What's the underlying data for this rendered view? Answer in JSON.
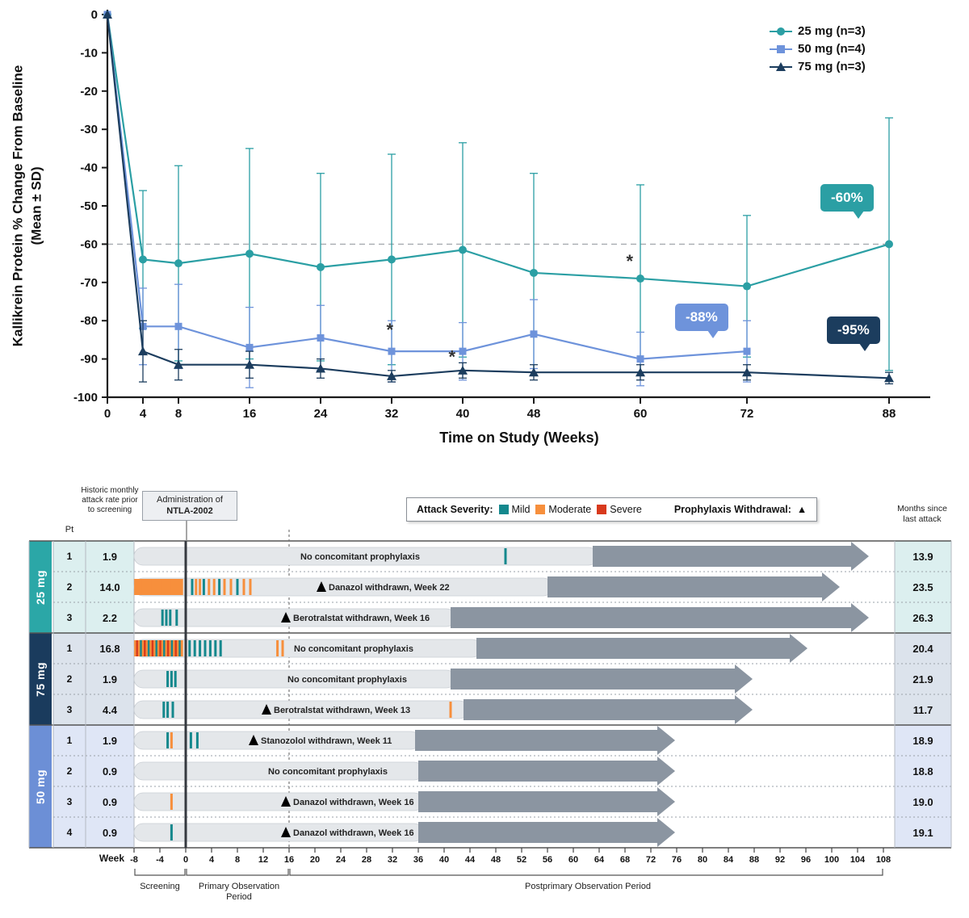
{
  "chart_data": [
    {
      "type": "line",
      "title": "",
      "xlabel": "Time on Study (Weeks)",
      "ylabel": "Kallikrein Protein % Change From Baseline (Mean ± SD)",
      "ylabel_line1": "Kallikrein Protein % Change From Baseline",
      "ylabel_line2": "(Mean ± SD)",
      "xlim": [
        0,
        88
      ],
      "ylim": [
        -100,
        0
      ],
      "x_ticks": [
        0,
        4,
        8,
        16,
        24,
        32,
        40,
        48,
        60,
        72,
        88
      ],
      "y_ticks": [
        0,
        -10,
        -20,
        -30,
        -40,
        -50,
        -60,
        -70,
        -80,
        -90,
        -100
      ],
      "reference_line": -60,
      "legend_position": "top-right",
      "series": [
        {
          "name": "25 mg (n=3)",
          "marker": "circle",
          "color": "#2B9FA4",
          "x": [
            0,
            4,
            8,
            16,
            24,
            32,
            40,
            48,
            60,
            72,
            88
          ],
          "y": [
            0,
            -64,
            -65,
            -62.5,
            -66,
            -64,
            -61.5,
            -67.5,
            -69,
            -71,
            -60
          ],
          "sd": [
            0,
            18,
            25.5,
            27.5,
            24.5,
            27.5,
            28,
            26,
            24.5,
            18.5,
            33
          ]
        },
        {
          "name": "50 mg (n=4)",
          "marker": "square",
          "color": "#6E93DB",
          "x": [
            0,
            4,
            8,
            16,
            24,
            32,
            40,
            48,
            60,
            72
          ],
          "y": [
            0,
            -81.5,
            -81.5,
            -87,
            -84.5,
            -88,
            -88,
            -83.5,
            -90,
            -88
          ],
          "sd": [
            0,
            10,
            11,
            10.5,
            8.5,
            8,
            7.5,
            9,
            7,
            8
          ]
        },
        {
          "name": "75 mg (n=3)",
          "marker": "triangle",
          "color": "#1C3D5E",
          "x": [
            0,
            4,
            8,
            16,
            24,
            32,
            40,
            48,
            60,
            72,
            88
          ],
          "y": [
            0,
            -88,
            -91.5,
            -91.5,
            -92.5,
            -94.5,
            -93,
            -93.5,
            -93.5,
            -93.5,
            -95
          ],
          "sd": [
            0,
            8,
            4,
            3.5,
            2.5,
            1.5,
            2,
            2,
            2,
            2,
            1.5
          ]
        }
      ],
      "callouts": [
        {
          "text": "-60%",
          "color": "#2B9FA4",
          "x": 88,
          "y": -60
        },
        {
          "text": "-88%",
          "color": "#6E93DB",
          "x": 72,
          "y": -88
        },
        {
          "text": "-95%",
          "color": "#1C3D5E",
          "x": 88,
          "y": -95
        }
      ],
      "asterisks": [
        {
          "x": 31.8,
          "y": -84.0
        },
        {
          "x": 38.8,
          "y": -91.0
        },
        {
          "x": 58.8,
          "y": -66.0
        }
      ]
    },
    {
      "type": "swimmer",
      "headers": {
        "pt": "Pt",
        "historic_rate": "Historic monthly attack rate prior to screening",
        "admin_line1": "Administration of",
        "admin_line2": "NTLA-2002",
        "months_since": "Months since last attack",
        "week_axis": "Week"
      },
      "legend": {
        "attack_severity_label": "Attack Severity:",
        "severities": [
          {
            "key": "mild",
            "label": "Mild",
            "color": "#14888D"
          },
          {
            "key": "moderate",
            "label": "Moderate",
            "color": "#F78F3C"
          },
          {
            "key": "severe",
            "label": "Severe",
            "color": "#D8391C"
          }
        ],
        "withdrawal_label": "Prophylaxis Withdrawal:",
        "withdrawal_symbol": "▲"
      },
      "week_ticks": [
        -8,
        -4,
        0,
        4,
        8,
        12,
        16,
        20,
        24,
        28,
        32,
        36,
        40,
        44,
        48,
        52,
        56,
        60,
        64,
        68,
        72,
        76,
        80,
        84,
        88,
        92,
        96,
        100,
        104,
        108
      ],
      "periods": [
        {
          "label": "Screening",
          "from": -8,
          "to": 0
        },
        {
          "label": "Primary Observation Period",
          "from": 0,
          "to": 16
        },
        {
          "label": "Postprimary Observation Period",
          "from": 16,
          "to": 108
        }
      ],
      "bar_color": "#E4E7EA",
      "arrow_color": "#8B95A1",
      "groups": [
        {
          "label": "25 mg",
          "color": "#2BA7A7",
          "tint": "#DCEFEF",
          "patients": [
            {
              "pt": "1",
              "rate": "1.9",
              "months_since_last_attack": "13.9",
              "annotation": "No concomitant prophylaxis",
              "annotation_center_week": 27,
              "withdrawal_week": null,
              "arrow_start": 63,
              "arrow_end": 105.5,
              "attacks": [
                {
                  "w": 49.5,
                  "s": "mild"
                }
              ]
            },
            {
              "pt": "2",
              "rate": "14.0",
              "months_since_last_attack": "23.5",
              "annotation": "Danazol withdrawn, Week 22",
              "annotation_center_week": null,
              "withdrawal_week": 21,
              "arrow_start": 56,
              "arrow_end": 101,
              "attacks": [
                {
                  "w": -7.8,
                  "s": "moderate"
                },
                {
                  "w": -7.5,
                  "s": "moderate"
                },
                {
                  "w": -7.2,
                  "s": "moderate"
                },
                {
                  "w": -6.9,
                  "s": "moderate"
                },
                {
                  "w": -6.6,
                  "s": "moderate"
                },
                {
                  "w": -6.3,
                  "s": "moderate"
                },
                {
                  "w": -6.0,
                  "s": "moderate"
                },
                {
                  "w": -5.7,
                  "s": "moderate"
                },
                {
                  "w": -5.4,
                  "s": "moderate"
                },
                {
                  "w": -5.1,
                  "s": "moderate"
                },
                {
                  "w": -4.8,
                  "s": "moderate"
                },
                {
                  "w": -4.5,
                  "s": "moderate"
                },
                {
                  "w": -4.2,
                  "s": "moderate"
                },
                {
                  "w": -3.9,
                  "s": "moderate"
                },
                {
                  "w": -3.6,
                  "s": "moderate"
                },
                {
                  "w": -3.3,
                  "s": "moderate"
                },
                {
                  "w": -3.0,
                  "s": "moderate"
                },
                {
                  "w": -2.7,
                  "s": "moderate"
                },
                {
                  "w": -2.4,
                  "s": "moderate"
                },
                {
                  "w": -2.1,
                  "s": "moderate"
                },
                {
                  "w": -1.8,
                  "s": "moderate"
                },
                {
                  "w": -1.5,
                  "s": "moderate"
                },
                {
                  "w": -1.2,
                  "s": "moderate"
                },
                {
                  "w": -0.9,
                  "s": "moderate"
                },
                {
                  "w": -0.6,
                  "s": "moderate"
                },
                {
                  "w": 1.0,
                  "s": "mild"
                },
                {
                  "w": 1.6,
                  "s": "moderate"
                },
                {
                  "w": 2.2,
                  "s": "moderate"
                },
                {
                  "w": 2.8,
                  "s": "mild"
                },
                {
                  "w": 3.6,
                  "s": "moderate"
                },
                {
                  "w": 4.4,
                  "s": "moderate"
                },
                {
                  "w": 5.2,
                  "s": "mild"
                },
                {
                  "w": 6.0,
                  "s": "moderate"
                },
                {
                  "w": 7.0,
                  "s": "moderate"
                },
                {
                  "w": 8.0,
                  "s": "mild"
                },
                {
                  "w": 9.0,
                  "s": "moderate"
                },
                {
                  "w": 10.0,
                  "s": "moderate"
                }
              ]
            },
            {
              "pt": "3",
              "rate": "2.2",
              "months_since_last_attack": "26.3",
              "annotation": "Berotralstat withdrawn, Week 16",
              "annotation_center_week": null,
              "withdrawal_week": 15.5,
              "arrow_start": 41,
              "arrow_end": 105.5,
              "attacks": [
                {
                  "w": -3.6,
                  "s": "mild"
                },
                {
                  "w": -3.0,
                  "s": "mild"
                },
                {
                  "w": -2.4,
                  "s": "mild"
                },
                {
                  "w": -1.4,
                  "s": "mild"
                }
              ]
            }
          ]
        },
        {
          "label": "75 mg",
          "color": "#1A3B5D",
          "tint": "#DCE3EC",
          "patients": [
            {
              "pt": "1",
              "rate": "16.8",
              "months_since_last_attack": "20.4",
              "annotation": "No concomitant prophylaxis",
              "annotation_center_week": 26,
              "withdrawal_week": null,
              "arrow_start": 45,
              "arrow_end": 96,
              "attacks": [
                {
                  "w": -7.8,
                  "s": "moderate"
                },
                {
                  "w": -7.5,
                  "s": "severe"
                },
                {
                  "w": -7.2,
                  "s": "moderate"
                },
                {
                  "w": -6.9,
                  "s": "mild"
                },
                {
                  "w": -6.6,
                  "s": "moderate"
                },
                {
                  "w": -6.3,
                  "s": "severe"
                },
                {
                  "w": -6.0,
                  "s": "moderate"
                },
                {
                  "w": -5.7,
                  "s": "mild"
                },
                {
                  "w": -5.4,
                  "s": "moderate"
                },
                {
                  "w": -5.1,
                  "s": "severe"
                },
                {
                  "w": -4.8,
                  "s": "moderate"
                },
                {
                  "w": -4.5,
                  "s": "mild"
                },
                {
                  "w": -4.2,
                  "s": "moderate"
                },
                {
                  "w": -3.9,
                  "s": "severe"
                },
                {
                  "w": -3.6,
                  "s": "moderate"
                },
                {
                  "w": -3.3,
                  "s": "mild"
                },
                {
                  "w": -3.0,
                  "s": "moderate"
                },
                {
                  "w": -2.7,
                  "s": "severe"
                },
                {
                  "w": -2.4,
                  "s": "moderate"
                },
                {
                  "w": -2.1,
                  "s": "mild"
                },
                {
                  "w": -1.8,
                  "s": "moderate"
                },
                {
                  "w": -1.5,
                  "s": "severe"
                },
                {
                  "w": -1.2,
                  "s": "moderate"
                },
                {
                  "w": -0.9,
                  "s": "mild"
                },
                {
                  "w": -0.6,
                  "s": "moderate"
                },
                {
                  "w": 0.6,
                  "s": "mild"
                },
                {
                  "w": 1.4,
                  "s": "mild"
                },
                {
                  "w": 2.2,
                  "s": "mild"
                },
                {
                  "w": 3.0,
                  "s": "mild"
                },
                {
                  "w": 3.8,
                  "s": "mild"
                },
                {
                  "w": 4.6,
                  "s": "mild"
                },
                {
                  "w": 5.4,
                  "s": "mild"
                },
                {
                  "w": 14.2,
                  "s": "moderate"
                },
                {
                  "w": 15.0,
                  "s": "moderate"
                }
              ]
            },
            {
              "pt": "2",
              "rate": "1.9",
              "months_since_last_attack": "21.9",
              "annotation": "No concomitant prophylaxis",
              "annotation_center_week": 25,
              "withdrawal_week": null,
              "arrow_start": 41,
              "arrow_end": 87.5,
              "attacks": [
                {
                  "w": -2.8,
                  "s": "mild"
                },
                {
                  "w": -2.2,
                  "s": "mild"
                },
                {
                  "w": -1.6,
                  "s": "mild"
                }
              ]
            },
            {
              "pt": "3",
              "rate": "4.4",
              "months_since_last_attack": "11.7",
              "annotation": "Berotralstat withdrawn, Week 13",
              "annotation_center_week": null,
              "withdrawal_week": 12.5,
              "arrow_start": 43,
              "arrow_end": 87.5,
              "attacks": [
                {
                  "w": -3.4,
                  "s": "mild"
                },
                {
                  "w": -2.8,
                  "s": "mild"
                },
                {
                  "w": -2.0,
                  "s": "mild"
                },
                {
                  "w": 41,
                  "s": "moderate"
                }
              ]
            }
          ]
        },
        {
          "label": "50 mg",
          "color": "#6C8FD6",
          "tint": "#DFE6F6",
          "patients": [
            {
              "pt": "1",
              "rate": "1.9",
              "months_since_last_attack": "18.9",
              "annotation": "Stanozolol withdrawn, Week 11",
              "annotation_center_week": null,
              "withdrawal_week": 10.5,
              "arrow_start": 35.5,
              "arrow_end": 75.5,
              "attacks": [
                {
                  "w": -2.8,
                  "s": "mild"
                },
                {
                  "w": -2.2,
                  "s": "moderate"
                },
                {
                  "w": 0.8,
                  "s": "mild"
                },
                {
                  "w": 1.8,
                  "s": "mild"
                }
              ]
            },
            {
              "pt": "2",
              "rate": "0.9",
              "months_since_last_attack": "18.8",
              "annotation": "No concomitant prophylaxis",
              "annotation_center_week": 22,
              "withdrawal_week": null,
              "arrow_start": 36,
              "arrow_end": 75.5,
              "attacks": []
            },
            {
              "pt": "3",
              "rate": "0.9",
              "months_since_last_attack": "19.0",
              "annotation": "Danazol withdrawn, Week 16",
              "annotation_center_week": null,
              "withdrawal_week": 15.5,
              "arrow_start": 36,
              "arrow_end": 75.5,
              "attacks": [
                {
                  "w": -2.2,
                  "s": "moderate"
                }
              ]
            },
            {
              "pt": "4",
              "rate": "0.9",
              "months_since_last_attack": "19.1",
              "annotation": "Danazol withdrawn, Week 16",
              "annotation_center_week": null,
              "withdrawal_week": 15.5,
              "arrow_start": 36,
              "arrow_end": 75.5,
              "attacks": [
                {
                  "w": -2.2,
                  "s": "mild"
                }
              ]
            }
          ]
        }
      ]
    }
  ]
}
